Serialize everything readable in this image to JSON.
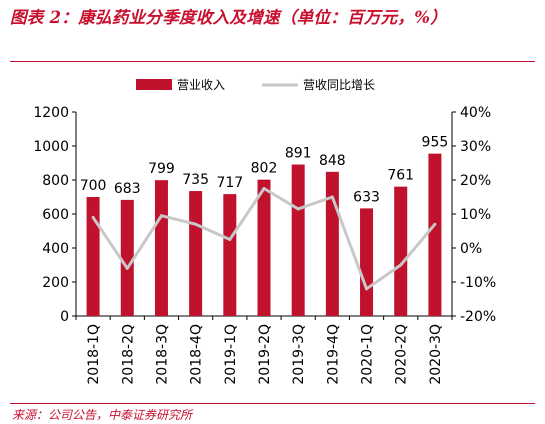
{
  "title": "图表 2：康弘药业分季度收入及增速（单位：百万元，%）",
  "source": "来源：公司公告，中泰证券研究所",
  "colors": {
    "bar": "#c0112d",
    "line": "#c8c8c8",
    "accent": "#c8102e",
    "axis": "#000000"
  },
  "chart_data": {
    "type": "bar",
    "categories": [
      "2018-1Q",
      "2018-2Q",
      "2018-3Q",
      "2018-4Q",
      "2019-1Q",
      "2019-2Q",
      "2019-3Q",
      "2019-4Q",
      "2020-1Q",
      "2020-2Q",
      "2020-3Q"
    ],
    "series": [
      {
        "name": "营业收入",
        "type": "bar",
        "axis": "left",
        "values": [
          700,
          683,
          799,
          735,
          717,
          802,
          891,
          848,
          633,
          761,
          955
        ]
      },
      {
        "name": "营收同比增长",
        "type": "line",
        "axis": "right",
        "values": [
          9.0,
          -6.0,
          9.5,
          7.0,
          2.5,
          17.5,
          11.5,
          15.0,
          -12.0,
          -5.0,
          7.0
        ]
      }
    ],
    "y_left": {
      "min": 0,
      "max": 1200,
      "ticks": [
        "0",
        "200",
        "400",
        "600",
        "800",
        "1000",
        "1200"
      ]
    },
    "y_right": {
      "min": -20,
      "max": 40,
      "ticks": [
        "-20%",
        "-10%",
        "0%",
        "10%",
        "20%",
        "30%",
        "40%"
      ]
    },
    "data_labels": [
      "700",
      "683",
      "799",
      "735",
      "717",
      "802",
      "891",
      "848",
      "633",
      "761",
      "955"
    ],
    "legend": {
      "position": "top"
    },
    "grid": false
  }
}
